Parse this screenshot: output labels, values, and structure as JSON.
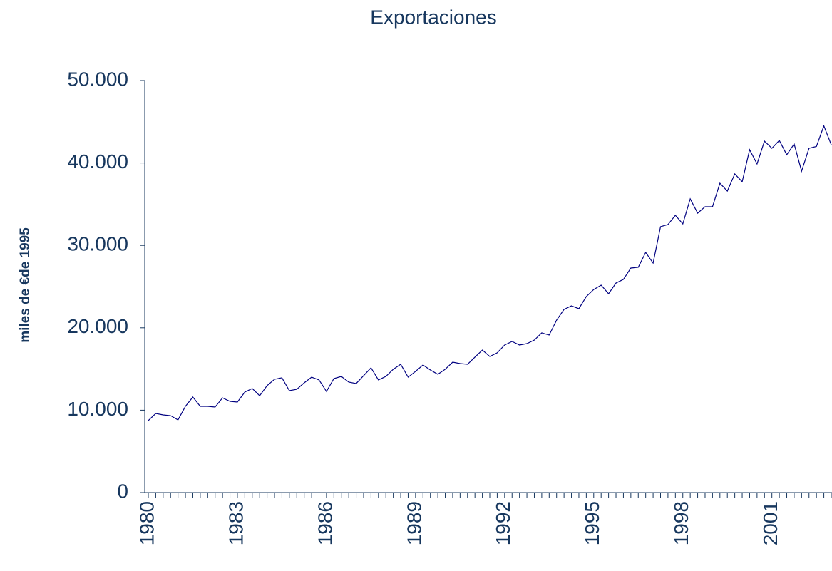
{
  "chart_data": {
    "type": "line",
    "title": "Exportaciones",
    "y_label": "miles de €de 1995",
    "categories": [
      "1980",
      null,
      null,
      null,
      null,
      null,
      null,
      null,
      null,
      null,
      null,
      null,
      "1983",
      null,
      null,
      null,
      null,
      null,
      null,
      null,
      null,
      null,
      null,
      null,
      "1986",
      null,
      null,
      null,
      null,
      null,
      null,
      null,
      null,
      null,
      null,
      null,
      "1989",
      null,
      null,
      null,
      null,
      null,
      null,
      null,
      null,
      null,
      null,
      null,
      "1992",
      null,
      null,
      null,
      null,
      null,
      null,
      null,
      null,
      null,
      null,
      null,
      "1995",
      null,
      null,
      null,
      null,
      null,
      null,
      null,
      null,
      null,
      null,
      null,
      "1998",
      null,
      null,
      null,
      null,
      null,
      null,
      null,
      null,
      null,
      null,
      null,
      "2001",
      null,
      null,
      null,
      null,
      null,
      null,
      null,
      null
    ],
    "series": [
      {
        "name": "Exportaciones",
        "color": "#000080",
        "values": [
          8740,
          9600,
          9430,
          9340,
          8820,
          10470,
          11590,
          10470,
          10470,
          10380,
          11500,
          11070,
          10990,
          12200,
          12630,
          11760,
          12980,
          13750,
          13930,
          12370,
          12540,
          13320,
          14010,
          13670,
          12280,
          13840,
          14100,
          13410,
          13240,
          14190,
          15140,
          13670,
          14100,
          14970,
          15570,
          14010,
          14710,
          15480,
          14880,
          14360,
          14970,
          15830,
          15660,
          15570,
          16440,
          17300,
          16520,
          16960,
          17910,
          18340,
          17910,
          18080,
          18510,
          19380,
          19120,
          20930,
          22230,
          22660,
          22320,
          23790,
          24650,
          25170,
          24130,
          25430,
          25870,
          27250,
          27340,
          29150,
          27850,
          32270,
          32530,
          33650,
          32610,
          35640,
          33910,
          34690,
          34690,
          37540,
          36590,
          38670,
          37720,
          41610,
          39880,
          42650,
          41780,
          42730,
          41000,
          42300,
          39010,
          41780,
          42000,
          44500,
          42200
        ]
      }
    ],
    "ylim": [
      0,
      50000
    ],
    "yticks": [
      0,
      {
        "value": 10000,
        "label": "10.000"
      },
      {
        "value": 20000,
        "label": "20.000"
      },
      {
        "value": 30000,
        "label": "30.000"
      },
      {
        "value": 40000,
        "label": "40.000"
      },
      {
        "value": 50000,
        "label": "50.000"
      }
    ]
  }
}
